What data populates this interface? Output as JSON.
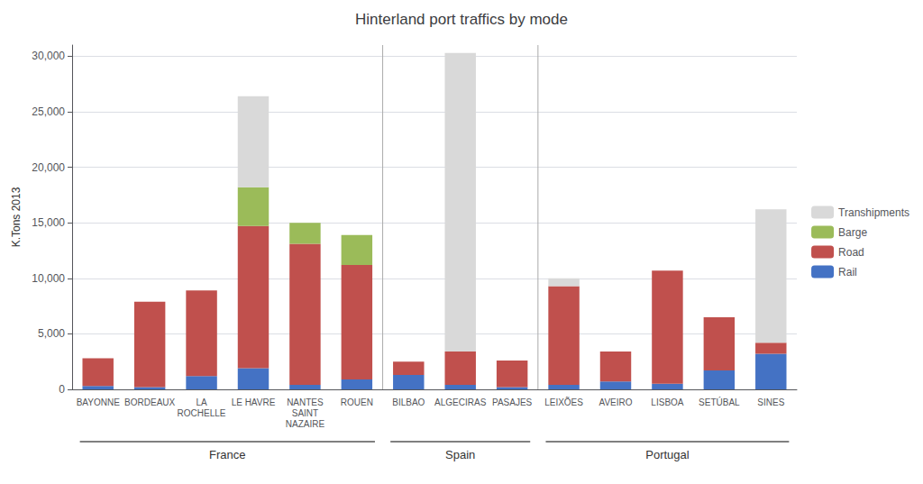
{
  "chart_data": {
    "type": "bar",
    "title": "Hinterland port traffics by mode",
    "ylabel": "K.Tons 2013",
    "categories": [
      "BAYONNE",
      "BORDEAUX",
      "LA\nROCHELLE",
      "LE HAVRE",
      "NANTES\nSAINT\nNAZAIRE",
      "ROUEN",
      "BILBAO",
      "ALGECIRAS",
      "PASAJES",
      "LEIXÕES",
      "AVEIRO",
      "LISBOA",
      "SETÚBAL",
      "SINES"
    ],
    "groups": [
      {
        "label": "France",
        "first": "BAYONNE",
        "last": "ROUEN"
      },
      {
        "label": "Spain",
        "first": "BILBAO",
        "last": "PASAJES"
      },
      {
        "label": "Portugal",
        "first": "LEIXÕES",
        "last": "SINES"
      }
    ],
    "series": [
      {
        "name": "Rail",
        "color": "#4472c4",
        "values": [
          300,
          200,
          1200,
          1900,
          400,
          900,
          1300,
          400,
          200,
          400,
          700,
          500,
          1700,
          3200
        ]
      },
      {
        "name": "Road",
        "color": "#c0504d",
        "values": [
          2500,
          7700,
          7700,
          12800,
          12700,
          10300,
          1200,
          3000,
          2400,
          8900,
          2700,
          10200,
          4800,
          1000
        ]
      },
      {
        "name": "Barge",
        "color": "#9bbb59",
        "values": [
          0,
          0,
          0,
          3500,
          1900,
          2700,
          0,
          0,
          0,
          0,
          0,
          0,
          0,
          0
        ]
      },
      {
        "name": "Transhipments",
        "color": "#d9d9d9",
        "values": [
          0,
          0,
          0,
          8200,
          0,
          0,
          0,
          26900,
          0,
          700,
          0,
          0,
          0,
          12000
        ]
      }
    ],
    "legend_order": [
      "Transhipments",
      "Barge",
      "Road",
      "Rail"
    ],
    "stacked": true,
    "ylim": [
      0,
      31000
    ],
    "yticks": [
      0,
      {
        "value": 5000,
        "label": "5,000"
      },
      {
        "value": 10000,
        "label": "10,000"
      },
      {
        "value": 15000,
        "label": "15,000"
      },
      {
        "value": 20000,
        "label": "20,000"
      },
      {
        "value": 25000,
        "label": "25,000"
      },
      {
        "value": 30000,
        "label": "30,000"
      }
    ],
    "grid": true,
    "legend": "right"
  }
}
